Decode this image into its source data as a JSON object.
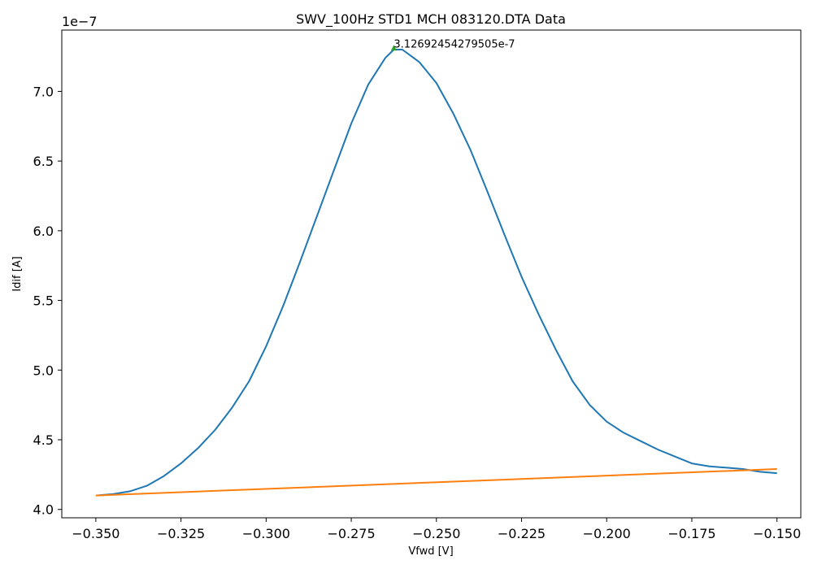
{
  "chart_data": {
    "type": "line",
    "title": "SWV_100Hz STD1 MCH 083120.DTA Data",
    "xlabel": "Vfwd [V]",
    "ylabel": "Idif [A]",
    "y_offset_label": "1e−7",
    "xlim": [
      -0.36,
      -0.143
    ],
    "ylim": [
      3.94,
      7.44
    ],
    "x_ticks": [
      -0.35,
      -0.325,
      -0.3,
      -0.275,
      -0.25,
      -0.225,
      -0.2,
      -0.175,
      -0.15
    ],
    "x_tick_labels": [
      "−0.350",
      "−0.325",
      "−0.300",
      "−0.275",
      "−0.250",
      "−0.225",
      "−0.200",
      "−0.175",
      "−0.150"
    ],
    "y_ticks": [
      4.0,
      4.5,
      5.0,
      5.5,
      6.0,
      6.5,
      7.0
    ],
    "y_tick_labels": [
      "4.0",
      "4.5",
      "5.0",
      "5.5",
      "6.0",
      "6.5",
      "7.0"
    ],
    "grid": false,
    "series": [
      {
        "color": "#1f77b4",
        "x": [
          -0.35,
          -0.345,
          -0.34,
          -0.335,
          -0.33,
          -0.325,
          -0.32,
          -0.315,
          -0.31,
          -0.305,
          -0.3,
          -0.295,
          -0.29,
          -0.285,
          -0.28,
          -0.275,
          -0.27,
          -0.265,
          -0.2625,
          -0.26,
          -0.255,
          -0.25,
          -0.245,
          -0.24,
          -0.235,
          -0.23,
          -0.225,
          -0.22,
          -0.215,
          -0.21,
          -0.205,
          -0.2,
          -0.195,
          -0.19,
          -0.185,
          -0.18,
          -0.175,
          -0.17,
          -0.165,
          -0.16,
          -0.155,
          -0.15
        ],
        "y": [
          4.1,
          4.11,
          4.13,
          4.17,
          4.24,
          4.33,
          4.44,
          4.57,
          4.73,
          4.92,
          5.17,
          5.46,
          5.78,
          6.11,
          6.44,
          6.77,
          7.05,
          7.24,
          7.3,
          7.3,
          7.21,
          7.06,
          6.84,
          6.58,
          6.28,
          5.97,
          5.67,
          5.4,
          5.15,
          4.92,
          4.75,
          4.63,
          4.55,
          4.49,
          4.43,
          4.38,
          4.33,
          4.31,
          4.3,
          4.29,
          4.27,
          4.26
        ]
      },
      {
        "color": "#ff7f0e",
        "x": [
          -0.35,
          -0.15
        ],
        "y": [
          4.1,
          4.29
        ]
      }
    ],
    "marker": {
      "x": -0.2625,
      "y": 7.31,
      "color": "#2ca02c",
      "shape": "triangle"
    },
    "annotation": {
      "text": "3.12692454279505e-7",
      "x": -0.2625,
      "y": 7.31
    }
  }
}
